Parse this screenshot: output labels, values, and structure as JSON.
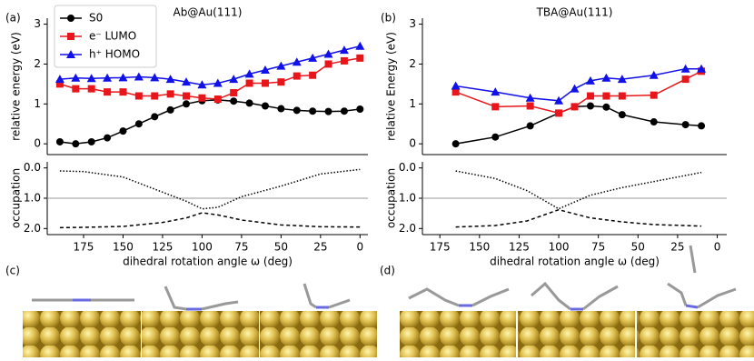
{
  "chart_data": [
    {
      "type": "line",
      "panel_label": "(a)",
      "title": "Ab@Au(111)",
      "ylabel": "relative energy (eV)",
      "x": [
        190,
        180,
        170,
        160,
        150,
        140,
        130,
        120,
        110,
        100,
        90,
        80,
        70,
        60,
        50,
        40,
        30,
        20,
        10,
        0
      ],
      "xlim": [
        198,
        -5
      ],
      "ylim": [
        -0.27,
        3.15
      ],
      "yticks": [
        0,
        1,
        2,
        3
      ],
      "legend": "upper left",
      "series": [
        {
          "name": "S0",
          "color": "#000000",
          "marker": "circle",
          "values": [
            0.05,
            0.0,
            0.05,
            0.15,
            0.32,
            0.5,
            0.68,
            0.85,
            1.0,
            1.08,
            1.1,
            1.07,
            1.02,
            0.95,
            0.88,
            0.84,
            0.82,
            0.81,
            0.82,
            0.87
          ]
        },
        {
          "name": "e⁻ LUMO",
          "color": "#e8161b",
          "marker": "square",
          "values": [
            1.5,
            1.38,
            1.38,
            1.3,
            1.3,
            1.2,
            1.2,
            1.25,
            1.2,
            1.15,
            1.12,
            1.28,
            1.52,
            1.52,
            1.55,
            1.7,
            1.72,
            2.0,
            2.08,
            2.15
          ]
        },
        {
          "name": "h⁺ HOMO",
          "color": "#1010e8",
          "marker": "triangle",
          "values": [
            1.62,
            1.65,
            1.64,
            1.65,
            1.66,
            1.68,
            1.66,
            1.62,
            1.55,
            1.48,
            1.52,
            1.62,
            1.75,
            1.85,
            1.95,
            2.05,
            2.15,
            2.25,
            2.35,
            2.45
          ]
        }
      ]
    },
    {
      "type": "line",
      "ylabel": "occupation",
      "xlabel": "dihedral rotation angle ω (deg)",
      "x": [
        190,
        175,
        150,
        125,
        110,
        100,
        90,
        75,
        50,
        25,
        0
      ],
      "xlim": [
        198,
        -5
      ],
      "ylim": [
        -0.2,
        2.2
      ],
      "y_inverted": true,
      "hline": 1,
      "yticks": [
        {
          "value": 0,
          "label": "0.0"
        },
        {
          "value": 1,
          "label": "1.0"
        },
        {
          "value": 2,
          "label": "2.0"
        }
      ],
      "xticks": [
        175,
        150,
        125,
        100,
        75,
        50,
        25,
        0
      ],
      "series": [
        {
          "color": "#000000",
          "dash": "dotted",
          "values": [
            0.1,
            0.12,
            0.3,
            0.8,
            1.1,
            1.35,
            1.3,
            0.95,
            0.6,
            0.2,
            0.05
          ]
        },
        {
          "color": "#000000",
          "dash": "dashed",
          "values": [
            1.97,
            1.96,
            1.93,
            1.8,
            1.65,
            1.48,
            1.55,
            1.72,
            1.88,
            1.94,
            1.95
          ]
        }
      ]
    },
    {
      "type": "line",
      "panel_label": "(b)",
      "title": "TBA@Au(111)",
      "ylabel": "relative Energy (eV)",
      "x": [
        165,
        140,
        118,
        100,
        90,
        80,
        70,
        60,
        40,
        20,
        10
      ],
      "xlim": [
        186,
        -6
      ],
      "ylim": [
        -0.27,
        3.15
      ],
      "yticks": [
        0,
        1,
        2,
        3
      ],
      "series": [
        {
          "color": "#000000",
          "marker": "circle",
          "values": [
            0.0,
            0.17,
            0.45,
            0.77,
            0.93,
            0.95,
            0.92,
            0.73,
            0.55,
            0.48,
            0.45
          ]
        },
        {
          "color": "#e8161b",
          "marker": "square",
          "values": [
            1.3,
            0.93,
            0.95,
            0.77,
            0.93,
            1.2,
            1.2,
            1.2,
            1.22,
            1.62,
            1.82
          ]
        },
        {
          "color": "#1010e8",
          "marker": "triangle",
          "values": [
            1.45,
            1.3,
            1.15,
            1.08,
            1.38,
            1.58,
            1.65,
            1.62,
            1.72,
            1.88,
            1.88
          ]
        }
      ]
    },
    {
      "type": "line",
      "ylabel": "occupation",
      "xlabel": "dihedral rotation angle ω (deg)",
      "x": [
        165,
        140,
        120,
        100,
        80,
        60,
        40,
        20,
        10
      ],
      "xlim": [
        186,
        -6
      ],
      "ylim": [
        -0.2,
        2.2
      ],
      "y_inverted": true,
      "hline": 1,
      "yticks": [
        {
          "value": 0,
          "label": "0.0"
        },
        {
          "value": 1,
          "label": "1.0"
        },
        {
          "value": 2,
          "label": "2.0"
        }
      ],
      "xticks": [
        175,
        150,
        125,
        100,
        75,
        50,
        25,
        0
      ],
      "series": [
        {
          "color": "#000000",
          "dash": "dotted",
          "values": [
            0.1,
            0.35,
            0.75,
            1.35,
            0.9,
            0.65,
            0.45,
            0.25,
            0.15
          ]
        },
        {
          "color": "#000000",
          "dash": "dashed",
          "values": [
            1.95,
            1.9,
            1.75,
            1.38,
            1.65,
            1.78,
            1.87,
            1.9,
            1.92
          ]
        }
      ]
    }
  ],
  "images": [
    {
      "label": "(c)"
    },
    {
      "label": "(d)"
    }
  ]
}
